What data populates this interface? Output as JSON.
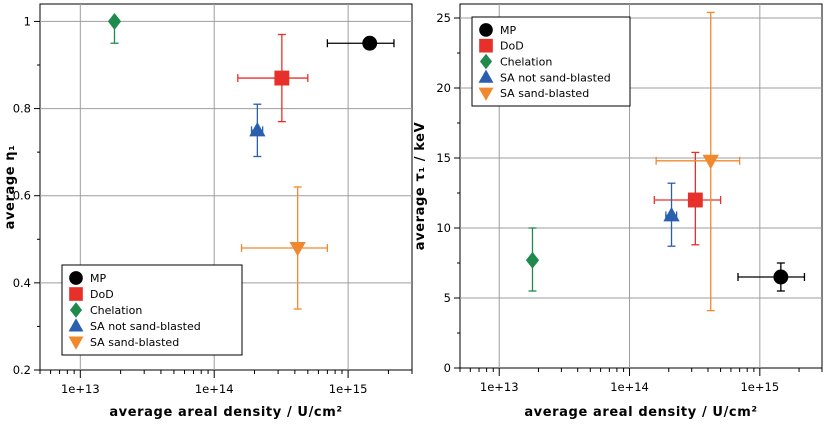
{
  "legend_labels": [
    "MP",
    "DoD",
    "Chelation",
    "SA not sand-blasted",
    "SA sand-blasted"
  ],
  "colors": {
    "MP": "#000000",
    "DoD": "#e8302a",
    "Chelation": "#1f8a4c",
    "SA not sand-blasted": "#2a5fb0",
    "SA sand-blasted": "#f0892e",
    "grid": "#9e9e9e"
  },
  "chart_data": [
    {
      "type": "scatter",
      "xscale": "log",
      "xlim": [
        5000000000000.0,
        3000000000000000.0
      ],
      "ylim": [
        0.2,
        1.04
      ],
      "xlabel": "average areal density / U/cm²",
      "ylabel": "average η₁",
      "xticks": [
        "1e+13",
        "1e+14",
        "1e+15"
      ],
      "yticks": [
        "0.2",
        "0.4",
        "0.6",
        "0.8",
        "1"
      ],
      "legend": "bottom-left",
      "grid": true,
      "points": [
        {
          "series": "MP",
          "marker": "circle",
          "x": 1450000000000000.0,
          "y": 0.95,
          "x_lo": 700000000000000.0,
          "x_hi": 2200000000000000.0,
          "y_lo": 0.94,
          "y_hi": 0.96
        },
        {
          "series": "DoD",
          "marker": "square",
          "x": 320000000000000.0,
          "y": 0.87,
          "x_lo": 150000000000000.0,
          "x_hi": 500000000000000.0,
          "y_lo": 0.77,
          "y_hi": 0.97
        },
        {
          "series": "Chelation",
          "marker": "diamond",
          "x": 18000000000000.0,
          "y": 1.0,
          "x_lo": 18000000000000.0,
          "x_hi": 18000000000000.0,
          "y_lo": 0.95,
          "y_hi": 1.0
        },
        {
          "series": "SA not sand-blasted",
          "marker": "triangle-up",
          "x": 210000000000000.0,
          "y": 0.75,
          "x_lo": 190000000000000.0,
          "x_hi": 230000000000000.0,
          "y_lo": 0.69,
          "y_hi": 0.81
        },
        {
          "series": "SA sand-blasted",
          "marker": "triangle-down",
          "x": 420000000000000.0,
          "y": 0.48,
          "x_lo": 160000000000000.0,
          "x_hi": 700000000000000.0,
          "y_lo": 0.34,
          "y_hi": 0.62
        }
      ]
    },
    {
      "type": "scatter",
      "xscale": "log",
      "xlim": [
        5000000000000.0,
        3000000000000000.0
      ],
      "ylim": [
        0,
        26
      ],
      "xlabel": "average areal density / U/cm²",
      "ylabel": "average τ₁ / keV",
      "xticks": [
        "1e+13",
        "1e+14",
        "1e+15"
      ],
      "yticks": [
        "0",
        "5",
        "10",
        "15",
        "20",
        "25"
      ],
      "legend": "top-left",
      "grid": true,
      "points": [
        {
          "series": "MP",
          "marker": "circle",
          "x": 1450000000000000.0,
          "y": 6.5,
          "x_lo": 680000000000000.0,
          "x_hi": 2200000000000000.0,
          "y_lo": 5.5,
          "y_hi": 7.5
        },
        {
          "series": "DoD",
          "marker": "square",
          "x": 320000000000000.0,
          "y": 12.0,
          "x_lo": 155000000000000.0,
          "x_hi": 500000000000000.0,
          "y_lo": 8.8,
          "y_hi": 15.4
        },
        {
          "series": "Chelation",
          "marker": "diamond",
          "x": 18000000000000.0,
          "y": 7.7,
          "x_lo": 18000000000000.0,
          "x_hi": 18000000000000.0,
          "y_lo": 5.5,
          "y_hi": 10.0
        },
        {
          "series": "SA not sand-blasted",
          "marker": "triangle-up",
          "x": 210000000000000.0,
          "y": 10.9,
          "x_lo": 190000000000000.0,
          "x_hi": 230000000000000.0,
          "y_lo": 8.7,
          "y_hi": 13.2
        },
        {
          "series": "SA sand-blasted",
          "marker": "triangle-down",
          "x": 420000000000000.0,
          "y": 14.8,
          "x_lo": 160000000000000.0,
          "x_hi": 700000000000000.0,
          "y_lo": 4.1,
          "y_hi": 25.4
        }
      ]
    }
  ]
}
